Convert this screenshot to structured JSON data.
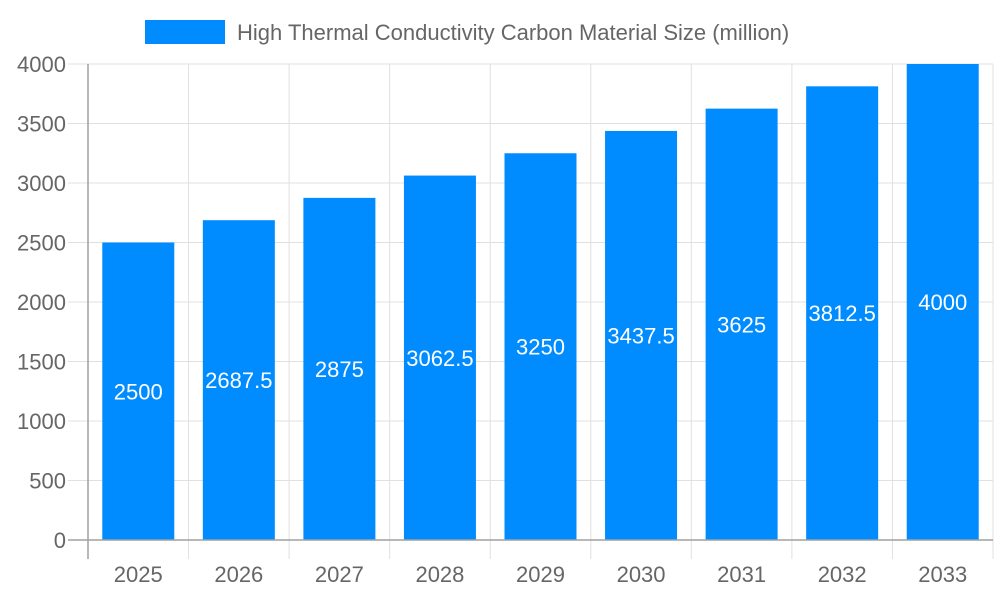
{
  "chart_data": {
    "type": "bar",
    "title": "",
    "xlabel": "",
    "ylabel": "",
    "categories": [
      "2025",
      "2026",
      "2027",
      "2028",
      "2029",
      "2030",
      "2031",
      "2032",
      "2033"
    ],
    "series": [
      {
        "name": "High Thermal Conductivity Carbon Material Size (million)",
        "values": [
          2500,
          2687.5,
          2875,
          3062.5,
          3250,
          3437.5,
          3625,
          3812.5,
          4000
        ]
      }
    ],
    "data_labels": [
      "2500",
      "2687.5",
      "2875",
      "3062.5",
      "3250",
      "3437.5",
      "3625",
      "3812.5",
      "4000"
    ],
    "ylim": [
      0,
      4000
    ],
    "yticks": [
      "0",
      "500",
      "1000",
      "1500",
      "2000",
      "2500",
      "3000",
      "3500",
      "4000"
    ],
    "grid": true,
    "legend_position": "top",
    "colors": {
      "bar": "#008cff",
      "grid": "#e0e0e0",
      "axis": "#a0a0a0",
      "text": "#666666",
      "label": "#ffffff"
    }
  }
}
